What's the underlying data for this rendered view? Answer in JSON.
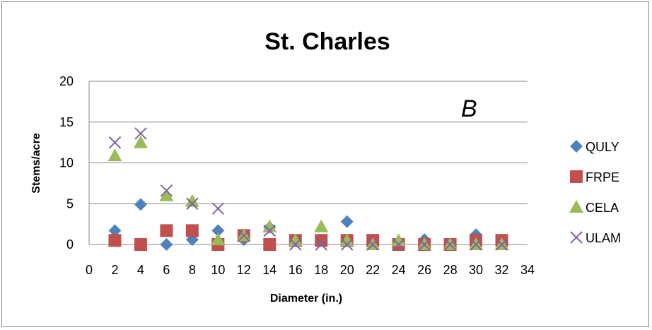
{
  "chart_data": {
    "type": "scatter",
    "title": "St. Charles",
    "xlabel": "Diameter (in.)",
    "ylabel": "Stems/acre",
    "annotation": "B",
    "xlim": [
      0,
      34
    ],
    "ylim": [
      0,
      20
    ],
    "x_ticks": [
      "0",
      "2",
      "4",
      "6",
      "8",
      "10",
      "12",
      "14",
      "16",
      "18",
      "20",
      "22",
      "24",
      "26",
      "28",
      "30",
      "32",
      "34"
    ],
    "y_ticks": [
      "0",
      "5",
      "10",
      "15",
      "20"
    ],
    "grid": "horizontal",
    "legend_position": "right",
    "series": [
      {
        "name": "QULY",
        "marker": "diamond",
        "color": "#4F81BD",
        "x": [
          2,
          4,
          6,
          8,
          10,
          12,
          14,
          16,
          18,
          20,
          22,
          24,
          26,
          28,
          30,
          32
        ],
        "y": [
          1.7,
          4.9,
          0,
          0.6,
          1.7,
          0.6,
          2.1,
          0.5,
          0.5,
          2.8,
          0.5,
          0,
          0.6,
          0,
          1.2,
          0.5
        ]
      },
      {
        "name": "FRPE",
        "marker": "square",
        "color": "#C0504D",
        "x": [
          2,
          4,
          6,
          8,
          10,
          12,
          14,
          16,
          18,
          20,
          22,
          24,
          26,
          28,
          30,
          32
        ],
        "y": [
          0.5,
          0,
          1.7,
          1.7,
          0,
          1.1,
          0,
          0.5,
          0.5,
          0.5,
          0.5,
          0,
          0,
          0,
          0.5,
          0.5
        ]
      },
      {
        "name": "CELA",
        "marker": "triangle",
        "color": "#9BBB59",
        "x": [
          2,
          4,
          6,
          8,
          10,
          12,
          14,
          16,
          18,
          20,
          22,
          24,
          26,
          28,
          30,
          32
        ],
        "y": [
          10.9,
          12.5,
          6.0,
          5.3,
          0.6,
          1.1,
          2.2,
          0.5,
          2.2,
          0.5,
          0,
          0.5,
          0,
          0,
          0,
          0
        ]
      },
      {
        "name": "ULAM",
        "marker": "x",
        "color": "#8064A2",
        "x": [
          2,
          4,
          6,
          8,
          10,
          12,
          14,
          16,
          18,
          20,
          22,
          24,
          26,
          28,
          30,
          32
        ],
        "y": [
          12.5,
          13.6,
          6.6,
          5.0,
          4.4,
          1.1,
          1.7,
          0,
          0,
          0,
          0,
          0,
          0,
          0,
          0,
          0
        ]
      }
    ]
  }
}
